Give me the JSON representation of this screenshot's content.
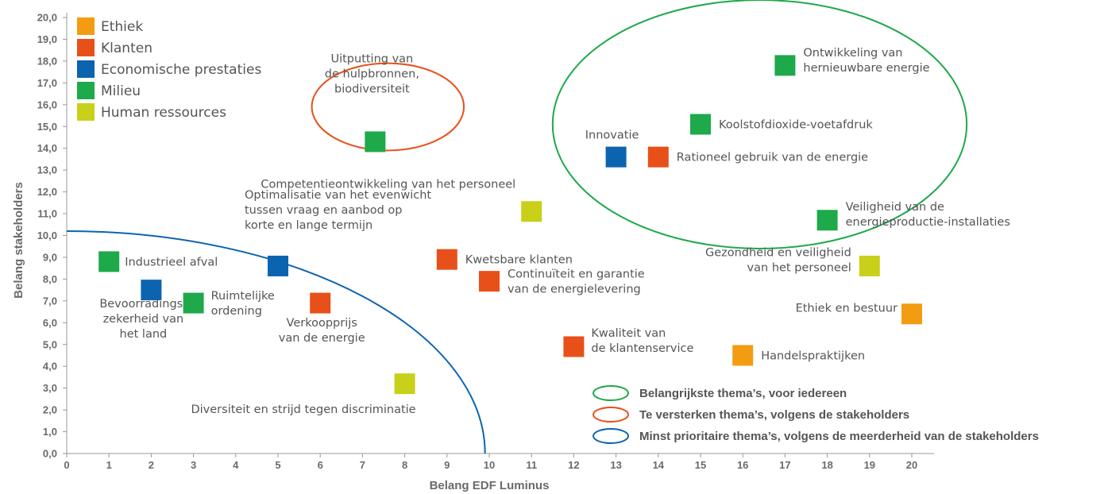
{
  "chart_data": {
    "type": "scatter",
    "xlabel": "Belang EDF Luminus",
    "ylabel": "Belang stakeholders",
    "xlim": [
      0,
      20
    ],
    "ylim": [
      0,
      20
    ],
    "x_ticks": [
      "0",
      "1",
      "2",
      "3",
      "4",
      "5",
      "6",
      "7",
      "8",
      "9",
      "10",
      "11",
      "12",
      "13",
      "14",
      "15",
      "16",
      "17",
      "18",
      "19",
      "20"
    ],
    "y_ticks": [
      "0,0",
      "1,0",
      "2,0",
      "3,0",
      "4,0",
      "5,0",
      "6,0",
      "7,0",
      "8,0",
      "9,0",
      "10,0",
      "11,0",
      "12,0",
      "13,0",
      "14,0",
      "15,0",
      "16,0",
      "17,0",
      "18,0",
      "19,0",
      "20,0"
    ],
    "grid": false,
    "categories": [
      {
        "key": "ethiek",
        "name": "Ethiek",
        "color": "#f39c12"
      },
      {
        "key": "klanten",
        "name": "Klanten",
        "color": "#e8501a"
      },
      {
        "key": "eco",
        "name": "Economische prestaties",
        "color": "#0c64b0"
      },
      {
        "key": "milieu",
        "name": "Milieu",
        "color": "#1ea94a"
      },
      {
        "key": "hr",
        "name": "Human ressources",
        "color": "#c8d01a"
      }
    ],
    "points": [
      {
        "x": 17.0,
        "y": 17.8,
        "cat": "milieu",
        "label": [
          "Ontwikkeling van",
          "hernieuwbare energie"
        ],
        "anchor": "start",
        "dx": 23,
        "dy": -7
      },
      {
        "x": 15.0,
        "y": 15.1,
        "cat": "milieu",
        "label": [
          "Koolstofdioxide-voetafdruk"
        ],
        "anchor": "start",
        "dx": 23,
        "dy": 0
      },
      {
        "x": 13.0,
        "y": 13.6,
        "cat": "eco",
        "label": [
          "Innovatie"
        ],
        "anchor": "middle",
        "dx": -5,
        "dy": -28
      },
      {
        "x": 14.0,
        "y": 13.6,
        "cat": "klanten",
        "label": [
          "Rationeel gebruik van de energie"
        ],
        "anchor": "start",
        "dx": 23,
        "dy": 0
      },
      {
        "x": 7.3,
        "y": 14.3,
        "cat": "milieu",
        "label": [
          "Uitputting van",
          "de hulpbronnen,",
          "biodiversiteit"
        ],
        "anchor": "middle",
        "dx": -4,
        "dy": -86
      },
      {
        "x": 11.0,
        "y": 11.1,
        "cat": "hr",
        "label": [
          "Competentieontwikkeling van het personeel"
        ],
        "anchor": "end",
        "dx": -20,
        "dy": -35
      },
      {
        "x": 18.0,
        "y": 10.7,
        "cat": "milieu",
        "label": [
          "Veiligheid van de",
          "energieproductie-installaties"
        ],
        "anchor": "start",
        "dx": 23,
        "dy": -8
      },
      {
        "x": 5.0,
        "y": 8.6,
        "cat": "eco",
        "label": [
          "Optimalisatie van het evenwicht",
          "tussen vraag en aanbod op",
          "korte en lange termijn"
        ],
        "anchor": "start",
        "dx": -42,
        "dy": -71
      },
      {
        "x": 9.0,
        "y": 8.9,
        "cat": "klanten",
        "label": [
          "Kwetsbare klanten"
        ],
        "anchor": "start",
        "dx": 23,
        "dy": 0
      },
      {
        "x": 1.0,
        "y": 8.8,
        "cat": "milieu",
        "label": [
          "Industrieel afval"
        ],
        "anchor": "start",
        "dx": 20,
        "dy": 0
      },
      {
        "x": 19.0,
        "y": 8.6,
        "cat": "hr",
        "label": [
          "Gezondheid en veiligheid",
          "van het personeel"
        ],
        "anchor": "end",
        "dx": -23,
        "dy": -8
      },
      {
        "x": 10.0,
        "y": 7.9,
        "cat": "klanten",
        "label": [
          "Continuïteit en garantie",
          "van de energielevering"
        ],
        "anchor": "start",
        "dx": 23,
        "dy": 0
      },
      {
        "x": 2.0,
        "y": 7.5,
        "cat": "eco",
        "label": [
          "Bevoorradings-",
          "zekerheid van",
          "het land"
        ],
        "anchor": "middle",
        "dx": -10,
        "dy": 36
      },
      {
        "x": 3.0,
        "y": 6.9,
        "cat": "milieu",
        "label": [
          "Ruimtelijke",
          "ordening"
        ],
        "anchor": "start",
        "dx": 22,
        "dy": 0
      },
      {
        "x": 6.0,
        "y": 6.9,
        "cat": "klanten",
        "label": [
          "Verkoopprijs",
          "van de energie"
        ],
        "anchor": "middle",
        "dx": 2,
        "dy": 34
      },
      {
        "x": 20.0,
        "y": 6.4,
        "cat": "ethiek",
        "label": [
          "Ethiek en bestuur"
        ],
        "anchor": "end",
        "dx": -18,
        "dy": -8
      },
      {
        "x": 12.0,
        "y": 4.9,
        "cat": "klanten",
        "label": [
          "Kwaliteit van",
          "de klantenservice"
        ],
        "anchor": "start",
        "dx": 22,
        "dy": -8
      },
      {
        "x": 16.0,
        "y": 4.5,
        "cat": "ethiek",
        "label": [
          "Handelspraktijken"
        ],
        "anchor": "start",
        "dx": 23,
        "dy": 0
      },
      {
        "x": 8.0,
        "y": 3.2,
        "cat": "hr",
        "label": [
          "Diversiteit en strijd tegen discriminatie"
        ],
        "anchor": "end",
        "dx": 14,
        "dy": 32
      }
    ],
    "groups": [
      {
        "key": "green",
        "color": "#1ea94a",
        "label": "Belangrijkste thema’s, voor iedereen",
        "cx": 16.4,
        "cy": 15.1,
        "rx": 4.9,
        "ry": 5.7
      },
      {
        "key": "orange",
        "color": "#e8501a",
        "label": "Te versterken thema’s, volgens de stakeholders",
        "cx": 7.6,
        "cy": 15.9,
        "rx": 1.8,
        "ry": 2.0
      },
      {
        "key": "blue",
        "color": "#0c64b0",
        "label": "Minst prioritaire thema’s, volgens de meerderheid van de stakeholders",
        "curve": {
          "x_intercept": 9.9,
          "y_intercept": 10.2
        }
      }
    ]
  }
}
